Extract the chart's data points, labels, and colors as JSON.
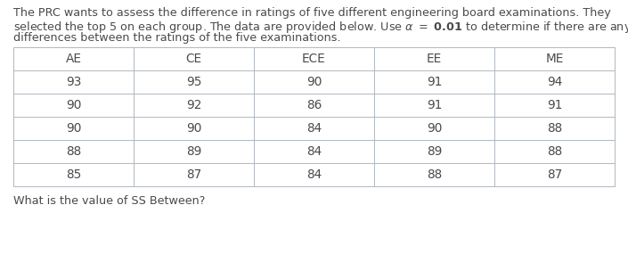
{
  "columns": [
    "AE",
    "CE",
    "ECE",
    "EE",
    "ME"
  ],
  "rows": [
    [
      93,
      95,
      90,
      91,
      94
    ],
    [
      90,
      92,
      86,
      91,
      91
    ],
    [
      90,
      90,
      84,
      90,
      88
    ],
    [
      88,
      89,
      84,
      89,
      88
    ],
    [
      85,
      87,
      84,
      88,
      87
    ]
  ],
  "question": "What is the value of SS Between?",
  "text_color": "#4a4a4a",
  "border_color": "#b0b8c0",
  "bg_color": "#ffffff",
  "font_size_para": 9.2,
  "font_size_table": 9.8,
  "font_size_question": 9.2,
  "line1": "The PRC wants to assess the difference in ratings of five different engineering board examinations. They",
  "line2_pre": "selected the top 5 on each group. The data are provided below. Use ",
  "line2_mid": "= 0.01",
  "line2_post": " to determine if there are any",
  "line3": "differences between the ratings of the five examinations."
}
